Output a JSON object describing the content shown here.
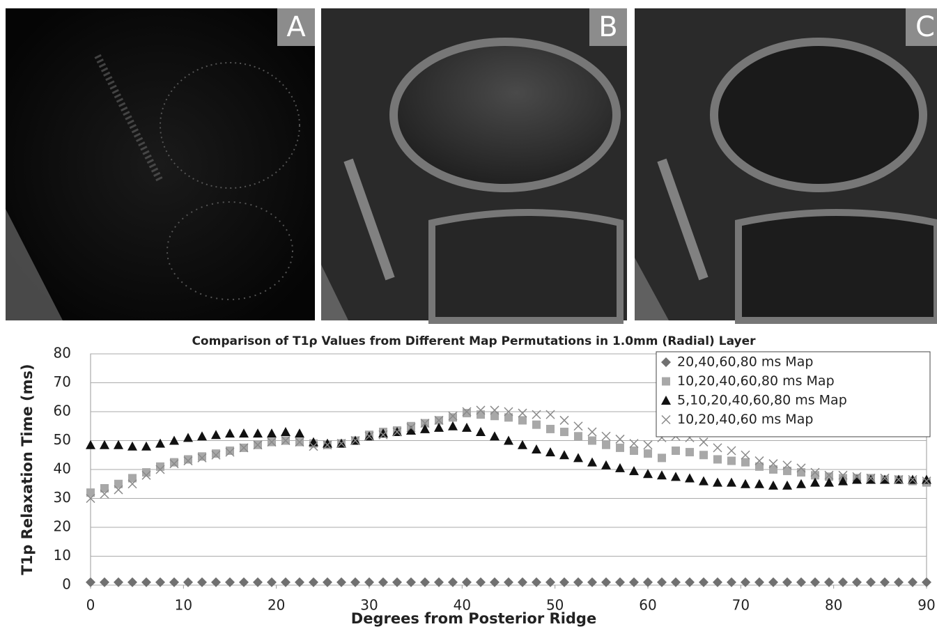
{
  "panels": [
    {
      "label": "A"
    },
    {
      "label": "B"
    },
    {
      "label": "C"
    }
  ],
  "chart_data": {
    "type": "scatter",
    "title": "Comparison of T1ρ Values from Different Map Permutations in 1.0mm (Radial) Layer",
    "x_label": "Degrees from Posterior Ridge",
    "y_label": "T1p Relaxation Time (ms)",
    "xlim": [
      0,
      90
    ],
    "ylim": [
      0,
      80
    ],
    "xticks": [
      0,
      10,
      20,
      30,
      40,
      50,
      60,
      70,
      80,
      90
    ],
    "yticks": [
      0,
      10,
      20,
      30,
      40,
      50,
      60,
      70,
      80
    ],
    "grid": true,
    "legend": "upper right",
    "x": [
      0,
      1.5,
      3,
      4.5,
      6,
      7.5,
      9,
      10.5,
      12,
      13.5,
      15,
      16.5,
      18,
      19.5,
      21,
      22.5,
      24,
      25.5,
      27,
      28.5,
      30,
      31.5,
      33,
      34.5,
      36,
      37.5,
      39,
      40.5,
      42,
      43.5,
      45,
      46.5,
      48,
      49.5,
      51,
      52.5,
      54,
      55.5,
      57,
      58.5,
      60,
      61.5,
      63,
      64.5,
      66,
      67.5,
      69,
      70.5,
      72,
      73.5,
      75,
      76.5,
      78,
      79.5,
      81,
      82.5,
      84,
      85.5,
      87,
      88.5,
      90
    ],
    "series": [
      {
        "name": "20,40,60,80 ms Map",
        "color": "#707070",
        "marker": "diamond",
        "values": [
          1,
          1,
          1,
          1,
          1,
          1,
          1,
          1,
          1,
          1,
          1,
          1,
          1,
          1,
          1,
          1,
          1,
          1,
          1,
          1,
          1,
          1,
          1,
          1,
          1,
          1,
          1,
          1,
          1,
          1,
          1,
          1,
          1,
          1,
          1,
          1,
          1,
          1,
          1,
          1,
          1,
          1,
          1,
          1,
          1,
          1,
          1,
          1,
          1,
          1,
          1,
          1,
          1,
          1,
          1,
          1,
          1,
          1,
          1,
          1,
          1
        ]
      },
      {
        "name": "10,20,40,60,80 ms Map",
        "color": "#a8a8a8",
        "marker": "square",
        "values": [
          32,
          33.5,
          35,
          37,
          39,
          41,
          42.5,
          43.5,
          44.5,
          45.5,
          46.5,
          47.5,
          48.5,
          49.5,
          50,
          49.5,
          49,
          48.5,
          49,
          50,
          52,
          53,
          53.5,
          55,
          56,
          57,
          58,
          59.5,
          59,
          58.5,
          58,
          57,
          55.5,
          54,
          53,
          51.5,
          50,
          48.5,
          47.5,
          46.5,
          45.5,
          44,
          46.5,
          46,
          45,
          43.5,
          43,
          42.5,
          41,
          40,
          39.5,
          39,
          38,
          37.5,
          37,
          37,
          37,
          36.5,
          36.5,
          36,
          35.5
        ]
      },
      {
        "name": "5,10,20,40,60,80 ms Map",
        "color": "#111111",
        "marker": "triangle",
        "values": [
          48.5,
          48.5,
          48.5,
          48,
          48,
          49,
          50,
          51,
          51.5,
          52,
          52.5,
          52.5,
          52.5,
          52.5,
          53,
          52.5,
          49.5,
          49,
          49,
          50,
          51.5,
          52.5,
          53,
          53.5,
          54,
          54.5,
          55,
          54.5,
          53,
          51.5,
          50,
          48.5,
          47,
          46,
          45,
          44,
          42.5,
          41.5,
          40.5,
          39.5,
          38.5,
          38,
          37.5,
          37,
          36,
          35.5,
          35.5,
          35,
          35,
          34.5,
          34.5,
          35,
          35.5,
          35.5,
          36,
          36.5,
          36.5,
          36.5,
          36.5,
          36.5,
          36.5
        ]
      },
      {
        "name": "10,20,40,60 ms Map",
        "color": "#8a8a8a",
        "marker": "cross",
        "values": [
          30,
          31.5,
          33,
          35,
          38,
          40,
          42,
          43,
          44,
          45,
          46,
          47.5,
          48.5,
          49.5,
          50,
          49.5,
          48,
          48.5,
          49,
          50,
          51.5,
          52,
          53,
          54.5,
          56,
          57,
          58.5,
          60,
          60.5,
          60.5,
          60,
          59.5,
          59,
          59,
          57,
          55,
          53,
          51.5,
          50.5,
          49,
          48.5,
          51,
          51.5,
          51,
          49.5,
          47.5,
          46.5,
          45,
          43,
          42,
          41.5,
          40.5,
          39,
          38,
          38,
          37.5,
          37,
          37,
          36.5,
          36.5,
          36
        ]
      }
    ]
  }
}
